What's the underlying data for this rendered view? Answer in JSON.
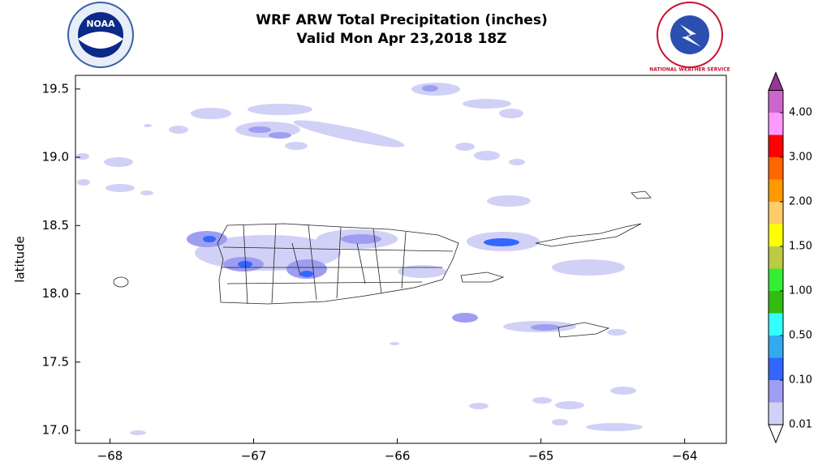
{
  "title": "WRF ARW Total Precipitation (inches)",
  "subtitle": "Valid Mon Apr 23,2018 18Z",
  "logos": {
    "left": "NOAA",
    "right": "NATIONAL WEATHER SERVICE"
  },
  "map": {
    "ylabel": "latitude",
    "xlim": [
      -68.24,
      -63.71
    ],
    "ylim": [
      16.905,
      19.6
    ],
    "xticks": [
      {
        "value": -68,
        "label": "−68"
      },
      {
        "value": -67,
        "label": "−67"
      },
      {
        "value": -66,
        "label": "−66"
      },
      {
        "value": -65,
        "label": "−65"
      },
      {
        "value": -64,
        "label": "−64"
      }
    ],
    "yticks": [
      {
        "value": 17,
        "label": "17.0"
      },
      17.5,
      {
        "value": 18,
        "label": "18.0"
      },
      18.5,
      {
        "value": 19,
        "label": "19.0"
      },
      19.5
    ]
  },
  "colorbar": {
    "colors": [
      "#d1d1f7",
      "#9d9df2",
      "#3366ff",
      "#33aaee",
      "#33ffff",
      "#33bb11",
      "#33ee33",
      "#bbcc44",
      "#ffff00",
      "#ffcc66",
      "#ff9900",
      "#ff6600",
      "#ff0000",
      "#ff99ff",
      "#cc66cc"
    ],
    "over_color": "#993399",
    "under_color": "#ffffff",
    "labels": [
      "0.01",
      "0.10",
      "0.50",
      "1.00",
      "1.50",
      "2.00",
      "3.00",
      "4.00"
    ]
  }
}
